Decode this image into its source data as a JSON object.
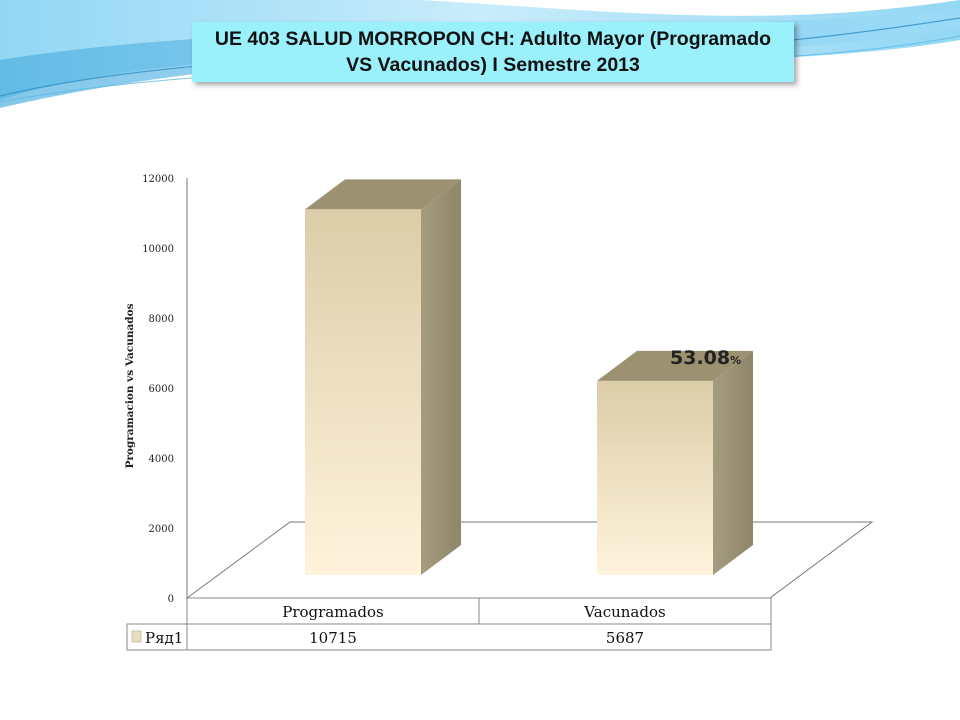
{
  "title": "UE 403 SALUD MORROPON CH: Adulto Mayor (Programado VS Vacunados) I Semestre 2013",
  "colors": {
    "title_bg": "#9af0fb",
    "bar_front_top": "#dccda8",
    "bar_front_bottom": "#fff3dc",
    "bar_side": "#a69c80",
    "bar_top": "#9c9170",
    "decor_blue": "#5fb9e6"
  },
  "chart_data": {
    "type": "bar",
    "categories": [
      "Programados",
      "Vacunados"
    ],
    "series": [
      {
        "name": "Ряд1",
        "values": [
          10715,
          5687
        ]
      }
    ],
    "ylabel": "Programacion vs Vacunados",
    "ylim": [
      0,
      12000
    ],
    "yticks": [
      "0",
      "2000",
      "4000",
      "6000",
      "8000",
      "10000",
      "12000"
    ],
    "annotation": {
      "value": "53.08",
      "unit": "%",
      "category": "Vacunados"
    },
    "grid": false,
    "legend": "data-table"
  }
}
